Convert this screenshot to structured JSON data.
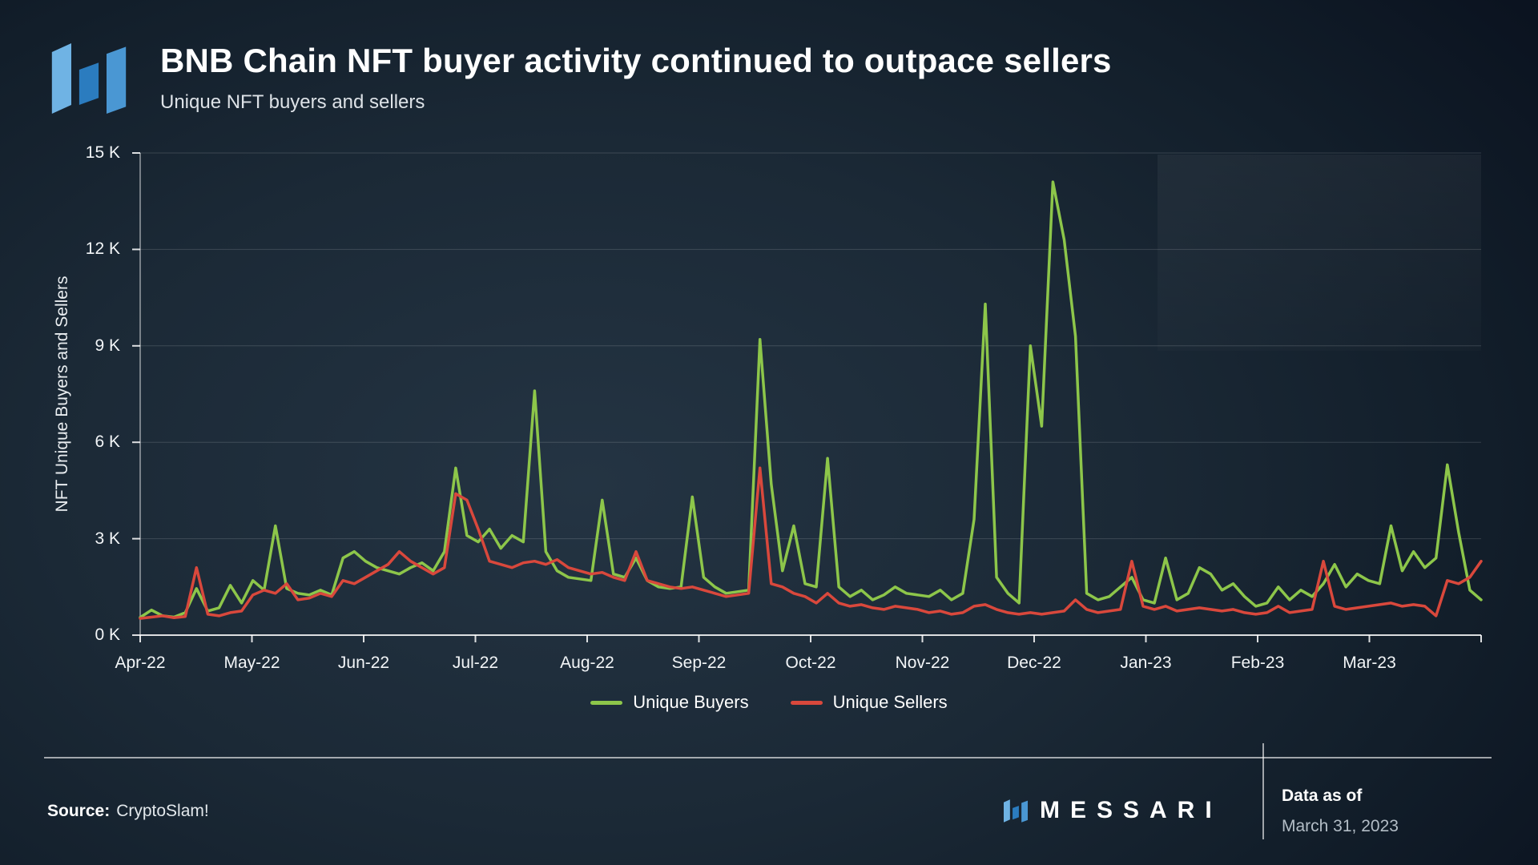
{
  "chart_data": {
    "type": "line",
    "title": "BNB Chain NFT buyer activity continued to outpace sellers",
    "subtitle": "Unique NFT buyers and sellers",
    "ylabel": "NFT Unique Buyers and Sellers",
    "xlabel": "",
    "ylim": [
      0,
      15000
    ],
    "grid": "horizontal",
    "legend_position": "bottom",
    "grid_color": "rgba(255,255,255,0.15)",
    "axis_color": "rgba(255,255,255,0.85)",
    "x_tick_labels": [
      "Apr-22",
      "May-22",
      "Jun-22",
      "Jul-22",
      "Aug-22",
      "Sep-22",
      "Oct-22",
      "Nov-22",
      "Dec-22",
      "Jan-23",
      "Feb-23",
      "Mar-23"
    ],
    "y_ticks": [
      {
        "value": 0,
        "label": "0 K"
      },
      {
        "value": 3000,
        "label": "3 K"
      },
      {
        "value": 6000,
        "label": "6 K"
      },
      {
        "value": 9000,
        "label": "9 K"
      },
      {
        "value": 12000,
        "label": "12 K"
      },
      {
        "value": 15000,
        "label": "15 K"
      }
    ],
    "series": [
      {
        "name": "Unique Buyers",
        "color": "#8dc64a",
        "values": [
          550,
          780,
          600,
          560,
          700,
          1450,
          750,
          850,
          1550,
          1000,
          1700,
          1400,
          3400,
          1450,
          1300,
          1250,
          1400,
          1250,
          2400,
          2600,
          2300,
          2100,
          2000,
          1900,
          2100,
          2250,
          2000,
          2600,
          5200,
          3100,
          2900,
          3300,
          2700,
          3100,
          2900,
          7600,
          2600,
          2000,
          1800,
          1750,
          1700,
          4200,
          1900,
          1800,
          2400,
          1700,
          1500,
          1450,
          1500,
          4300,
          1800,
          1500,
          1300,
          1350,
          1400,
          9200,
          4700,
          2000,
          3400,
          1600,
          1500,
          5500,
          1500,
          1200,
          1400,
          1100,
          1250,
          1500,
          1300,
          1250,
          1200,
          1400,
          1100,
          1300,
          3600,
          10300,
          1800,
          1300,
          1000,
          9000,
          6500,
          14100,
          12300,
          9300,
          1300,
          1100,
          1200,
          1500,
          1800,
          1100,
          1000,
          2400,
          1100,
          1300,
          2100,
          1900,
          1400,
          1600,
          1200,
          900,
          1000,
          1500,
          1100,
          1400,
          1200,
          1600,
          2200,
          1500,
          1900,
          1700,
          1600,
          3400,
          2000,
          2600,
          2100,
          2400,
          5300,
          3200,
          1400,
          1100
        ]
      },
      {
        "name": "Unique Sellers",
        "color": "#d9483c",
        "values": [
          520,
          560,
          600,
          540,
          580,
          2100,
          650,
          600,
          700,
          750,
          1250,
          1400,
          1300,
          1600,
          1100,
          1150,
          1300,
          1200,
          1700,
          1600,
          1800,
          2000,
          2200,
          2600,
          2300,
          2100,
          1900,
          2100,
          4400,
          4200,
          3300,
          2300,
          2200,
          2100,
          2250,
          2300,
          2200,
          2350,
          2100,
          2000,
          1900,
          1950,
          1800,
          1700,
          2600,
          1700,
          1600,
          1500,
          1450,
          1500,
          1400,
          1300,
          1200,
          1250,
          1300,
          5200,
          1600,
          1500,
          1300,
          1200,
          1000,
          1300,
          1000,
          900,
          950,
          850,
          800,
          900,
          850,
          800,
          700,
          750,
          650,
          700,
          900,
          950,
          800,
          700,
          650,
          700,
          650,
          700,
          750,
          1100,
          800,
          700,
          750,
          800,
          2300,
          900,
          800,
          900,
          750,
          800,
          850,
          800,
          750,
          800,
          700,
          650,
          700,
          900,
          700,
          750,
          800,
          2300,
          900,
          800,
          850,
          900,
          950,
          1000,
          900,
          950,
          900,
          600,
          1700,
          1600,
          1800,
          2300
        ]
      }
    ]
  },
  "footer": {
    "source_label": "Source:",
    "source_value": "CryptoSlam!",
    "brand": "MESSARI",
    "data_as_of_label": "Data as of",
    "data_as_of_value": "March 31, 2023"
  }
}
